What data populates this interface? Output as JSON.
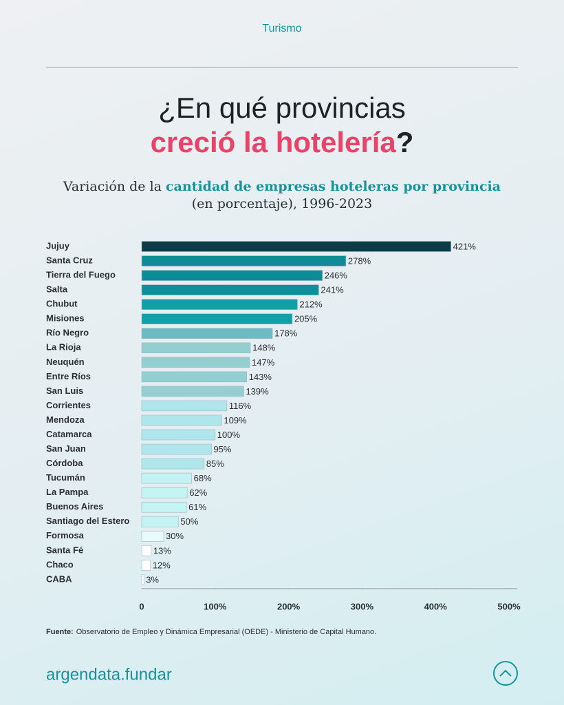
{
  "header": "Turismo",
  "brand": "argendata.fundar",
  "chart_data": {
    "type": "hbar",
    "title": "¿En qué provincias",
    "title_highlight": "creció la hotelería",
    "title_end": "?",
    "subtitle": "Variación de la",
    "subtitle_highlight": "cantidad de empresas hoteleras por provincia",
    "subtitle_end": "(en porcentaje), 1996-2023",
    "categories": [
      "Jujuy",
      "Santa Cruz",
      "Tierra del Fuego",
      "Salta",
      "Chubut",
      "Misiones",
      "Río Negro",
      "La Rioja",
      "Neuquén",
      "Entre Ríos",
      "San Luis",
      "Corrientes",
      "Mendoza",
      "Catamarca",
      "San Juan",
      "Córdoba",
      "Tucumán",
      "La Pampa",
      "Buenos Aires",
      "Santiago del Estero",
      "Formosa",
      "Santa Fé",
      "Chaco",
      "CABA"
    ],
    "values": [
      421,
      278,
      246,
      241,
      212,
      205,
      178,
      148,
      147,
      143,
      139,
      116,
      109,
      100,
      95,
      85,
      68,
      62,
      61,
      50,
      30,
      13,
      12,
      3
    ],
    "value_labels": [
      "421%",
      "278%",
      "246%",
      "241%",
      "212%",
      "205%",
      "178%",
      "148%",
      "147%",
      "143%",
      "139%",
      "116%",
      "109%",
      "100%",
      "95%",
      "85%",
      "68%",
      "62%",
      "61%",
      "50%",
      "30%",
      "13%",
      "12%",
      "3%"
    ],
    "colors": [
      "#0b3c48",
      "#0e8d99",
      "#0e8d99",
      "#0f8f9b",
      "#12a0a6",
      "#12a0a6",
      "#6cbac4",
      "#93cfd1",
      "#93cfd1",
      "#93cfd1",
      "#93cfd1",
      "#aee6ec",
      "#aee6ec",
      "#aee6ec",
      "#aee6ec",
      "#aee6ec",
      "#c3f3f2",
      "#c3f3f2",
      "#c3f3f2",
      "#c3f3f2",
      "#e8fbfa",
      "#ffffff",
      "#ffffff",
      "#ffffff"
    ],
    "xlim": [
      0,
      500
    ],
    "xticks": [
      0,
      {
        "value": 100,
        "label": "100%"
      },
      {
        "value": 200,
        "label": "200%"
      },
      {
        "value": 300,
        "label": "300%"
      },
      {
        "value": 400,
        "label": "400%"
      },
      {
        "value": 500,
        "label": "500%"
      }
    ],
    "source_label": "Fuente:",
    "source": "Observatorio de Empleo y Dinámica Empresarial (OEDE) - Ministerio de Capital Humano."
  }
}
